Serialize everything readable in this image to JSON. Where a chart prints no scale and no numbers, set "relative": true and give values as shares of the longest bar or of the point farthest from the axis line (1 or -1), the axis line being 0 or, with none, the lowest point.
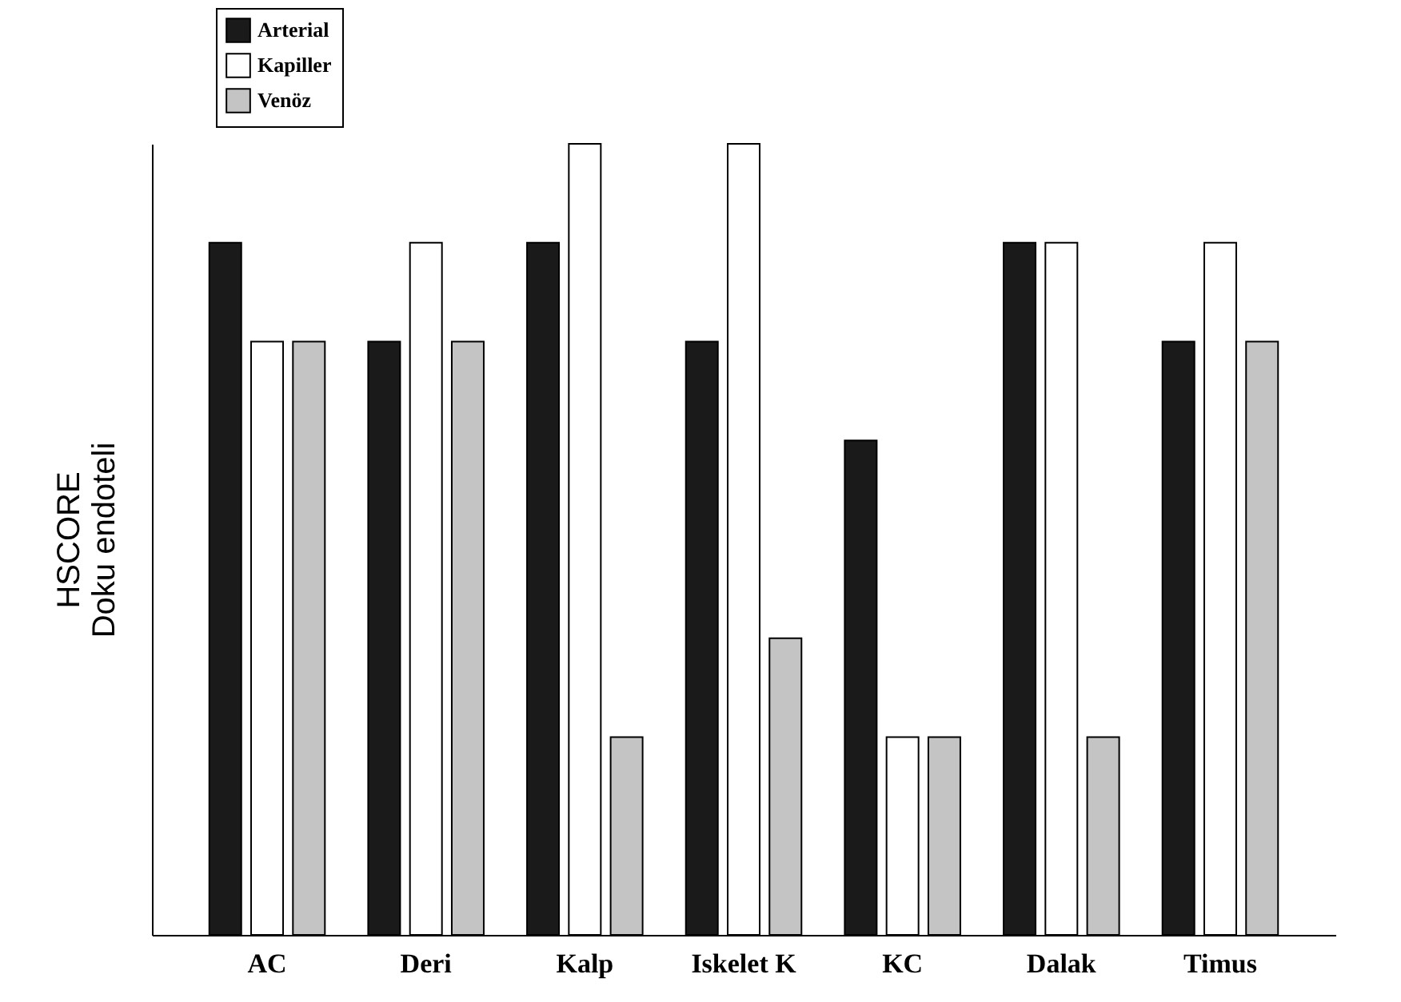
{
  "chart_data": {
    "type": "bar",
    "relative": true,
    "ylabel": "HSCORE\nDoku endoteli",
    "legend": "top left",
    "categories": [
      "AC",
      "Deri",
      "Kalp",
      "Iskelet K",
      "KC",
      "Dalak",
      "Timus"
    ],
    "series": [
      {
        "name": "Arterial",
        "color": "#1a1a1a",
        "values": [
          0.875,
          0.75,
          0.875,
          0.75,
          0.625,
          0.875,
          0.75
        ]
      },
      {
        "name": "Kapiller",
        "color": "#ffffff",
        "values": [
          0.75,
          0.875,
          1,
          1,
          0.25,
          0.875,
          0.875
        ]
      },
      {
        "name": "Venöz",
        "color": "#c4c4c4",
        "values": [
          0.75,
          0.75,
          0.25,
          0.375,
          0.25,
          0.25,
          0.75
        ]
      }
    ]
  }
}
